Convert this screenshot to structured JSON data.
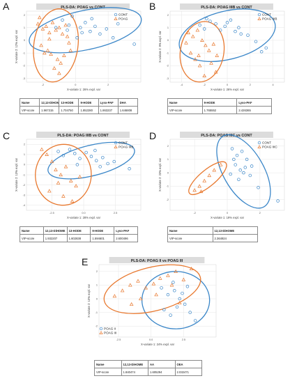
{
  "colors": {
    "cont": "#3a86c8",
    "poag": "#e8782e",
    "grid": "#e6e6e6",
    "title_bg": "#dcdcdc"
  },
  "panels": [
    {
      "letter": "A",
      "title": "PLS-DA: POAG vs CONT",
      "xlabel": "X-variate 1: 26% expl. var",
      "ylabel": "X-variate 2: 12% expl. var",
      "legend": [
        "CONT",
        "POAG"
      ],
      "xticks": [
        "-2",
        "0",
        "2"
      ],
      "yticks": [
        "2",
        "1",
        "0",
        "-1",
        "-2",
        "-3"
      ],
      "table": {
        "header": [
          "Name",
          "12,13-DiHOME",
          "13-HODE",
          "9-HODE",
          "Lyso-PAF",
          "DHA"
        ],
        "row": [
          "VIP-score",
          "1.967315",
          "1.704750",
          "1.852280",
          "1.863237",
          "1.646808"
        ]
      }
    },
    {
      "letter": "B",
      "title": "PLS-DA: POAG IIIB vs CONT",
      "xlabel": "X-variate 1: 26% expl. var",
      "ylabel": "X-variate 2: 9% expl. var",
      "legend": [
        "CONT",
        "POAG IIIB"
      ],
      "xticks": [
        "-4",
        "-2",
        "0",
        "2",
        "4"
      ],
      "yticks": [
        "2",
        "1",
        "0",
        "-1",
        "-2",
        "-3"
      ],
      "table": {
        "header": [
          "Name",
          "9-HODE",
          "Lyso-PAF"
        ],
        "row": [
          "VIP-score",
          "1.765552",
          "2.426365"
        ]
      }
    },
    {
      "letter": "C",
      "title": "PLS-DA: POAG IIIB vs CONT",
      "xlabel": "X-variate 1: 28% expl. var",
      "ylabel": "X-variate 2: 13% expl. var",
      "legend": [
        "CONT",
        "POAG IIIB"
      ],
      "xticks": [
        "-2.5",
        "0.0",
        "2.5"
      ],
      "yticks": [
        "2",
        "1",
        "0",
        "-1",
        "-2",
        "-3",
        "-4"
      ],
      "table": {
        "header": [
          "Name",
          "12,13-DiHOME",
          "13-HODE",
          "9-HODE",
          "Lyso-PAF"
        ],
        "row": [
          "VIP-score",
          "1.932207",
          "1.602838",
          "1.594601",
          "2.600496"
        ]
      }
    },
    {
      "letter": "D",
      "title": "PLS-DA: POAG IIIC vs CONT",
      "xlabel": "X-variate 1: 19% expl. var",
      "ylabel": "X-variate 2: 23% expl. var",
      "legend": [
        "CONT",
        "POAG IIIC"
      ],
      "xticks": [
        "-2",
        "0",
        "2"
      ],
      "yticks": [
        "2",
        "1",
        "0",
        "-1",
        "-2"
      ],
      "table": {
        "header": [
          "Name",
          "12,13-DiHOME"
        ],
        "row": [
          "VIP-score",
          "2.364924"
        ]
      }
    },
    {
      "letter": "E",
      "title": "PLS-DA: POAG II vs POAG III",
      "xlabel": "X-variate 1: 24% expl. var",
      "ylabel": "X-variate 2: 10% expl. var",
      "legend": [
        "POAG II",
        "POAG III"
      ],
      "xticks": [
        "-2.5",
        "0.0",
        "2.5"
      ],
      "yticks": [
        "2",
        "1",
        "0",
        "-1",
        "-2"
      ],
      "table": {
        "header": [
          "Name",
          "12,13-DiHOME",
          "AA",
          "OEA"
        ],
        "row": [
          "VIP-score",
          "1.840474",
          "1.605294",
          "2.032471"
        ]
      }
    }
  ],
  "chart_data": [
    {
      "type": "scatter",
      "title": "PLS-DA: POAG vs CONT",
      "xlabel": "X-variate 1: 26% expl. var",
      "ylabel": "X-variate 2: 12% expl. var",
      "xlim": [
        -3,
        4
      ],
      "ylim": [
        -3.3,
        2.3
      ],
      "grid": true,
      "legend_position": "top-right",
      "series": [
        {
          "name": "CONT",
          "marker": "circle",
          "color": "#3a86c8",
          "x": [
            -0.8,
            -0.4,
            -0.2,
            0.3,
            0.6,
            0.9,
            1.2,
            1.5,
            1.9,
            2.3,
            0.1,
            -0.5,
            1.0,
            2.6,
            0.4,
            -1.2,
            3.6
          ],
          "y": [
            1.6,
            1.2,
            1.9,
            1.0,
            1.4,
            0.7,
            1.1,
            0.5,
            0.9,
            0.2,
            0.2,
            0.8,
            1.7,
            1.3,
            0.6,
            1.0,
            -0.3
          ]
        },
        {
          "name": "POAG",
          "marker": "triangle",
          "color": "#e8782e",
          "x": [
            -2.3,
            -2.0,
            -1.8,
            -1.6,
            -1.4,
            -1.2,
            -1.0,
            -0.8,
            -0.6,
            -0.5,
            -0.4,
            -2.1,
            -1.7,
            -1.5,
            -1.1,
            -0.9,
            -0.7,
            -1.3,
            -1.9,
            -0.3,
            -1.6,
            -1.0,
            -2.2
          ],
          "y": [
            1.3,
            0.9,
            1.1,
            0.6,
            1.4,
            0.8,
            1.0,
            0.5,
            1.2,
            0.3,
            -0.2,
            -0.4,
            -0.8,
            -1.1,
            -1.5,
            -1.8,
            -1.2,
            -2.2,
            -1.0,
            -0.8,
            0.1,
            -2.6,
            1.8
          ]
        }
      ],
      "ellipses": [
        {
          "series": "CONT",
          "cx": 0.6,
          "cy": 0.8,
          "rx": 3.5,
          "ry": 1.55,
          "angle_deg": -12
        },
        {
          "series": "POAG",
          "cx": -1.2,
          "cy": -0.4,
          "rx": 1.35,
          "ry": 2.9,
          "angle_deg": 8
        }
      ]
    },
    {
      "type": "scatter",
      "title": "PLS-DA: POAG IIIB vs CONT",
      "xlabel": "X-variate 1: 26% expl. var",
      "ylabel": "X-variate 2: 9% expl. var",
      "xlim": [
        -5,
        5
      ],
      "ylim": [
        -3.3,
        2.3
      ],
      "grid": true,
      "legend_position": "top-right",
      "series": [
        {
          "name": "CONT",
          "marker": "circle",
          "color": "#3a86c8",
          "x": [
            -2.4,
            -2.0,
            -1.5,
            -1.0,
            -0.6,
            -0.2,
            0.3,
            0.7,
            1.2,
            1.8,
            2.5,
            3.0,
            3.4,
            -1.8,
            0.0,
            1.0
          ],
          "y": [
            1.2,
            0.9,
            1.5,
            1.3,
            0.8,
            1.1,
            1.6,
            0.7,
            0.5,
            0.4,
            -0.1,
            -0.9,
            -0.6,
            1.7,
            1.4,
            1.0
          ]
        },
        {
          "name": "POAG IIIB",
          "marker": "triangle",
          "color": "#e8782e",
          "x": [
            -3.4,
            -3.0,
            -2.6,
            -2.2,
            -1.9,
            -1.6,
            -1.2,
            -0.9,
            -3.2,
            -2.8,
            -2.4,
            -1.4,
            -1.0,
            -2.0,
            -2.5,
            -3.6
          ],
          "y": [
            0.6,
            0.3,
            0.8,
            0.0,
            -0.4,
            -0.8,
            -0.3,
            -1.2,
            -1.0,
            -1.5,
            -2.0,
            -1.8,
            -2.5,
            -2.8,
            -1.2,
            -0.2
          ]
        }
      ],
      "ellipses": [
        {
          "series": "CONT",
          "cx": 0.0,
          "cy": 0.4,
          "rx": 4.3,
          "ry": 1.9,
          "angle_deg": -14
        },
        {
          "series": "POAG IIIB",
          "cx": -2.2,
          "cy": -0.9,
          "rx": 1.9,
          "ry": 2.4,
          "angle_deg": 10
        }
      ]
    },
    {
      "type": "scatter",
      "title": "PLS-DA: POAG IIIB vs CONT",
      "xlabel": "X-variate 1: 28% expl. var",
      "ylabel": "X-variate 2: 13% expl. var",
      "xlim": [
        -4.5,
        4.5
      ],
      "ylim": [
        -4.5,
        2.5
      ],
      "grid": true,
      "legend_position": "top-right",
      "series": [
        {
          "name": "CONT",
          "marker": "circle",
          "color": "#3a86c8",
          "x": [
            -2.0,
            -1.6,
            -1.1,
            -0.7,
            -0.3,
            0.2,
            0.6,
            1.0,
            1.5,
            1.9,
            2.4,
            3.6,
            -0.5,
            0.9,
            1.3
          ],
          "y": [
            1.3,
            0.9,
            1.5,
            1.1,
            0.6,
            1.2,
            0.8,
            0.4,
            0.7,
            0.1,
            0.3,
            -0.4,
            0.0,
            1.4,
            -0.2
          ]
        },
        {
          "name": "POAG IIIB",
          "marker": "triangle",
          "color": "#e8782e",
          "x": [
            -3.3,
            -2.9,
            -2.5,
            -2.2,
            -1.8,
            -1.4,
            -1.0,
            -0.6,
            -0.3,
            -2.7,
            -1.6,
            -0.9,
            -2.0
          ],
          "y": [
            1.5,
            1.0,
            0.3,
            -0.5,
            -1.0,
            -0.2,
            -1.6,
            -2.1,
            -1.2,
            -2.6,
            -3.1,
            -3.6,
            -1.8
          ]
        }
      ],
      "ellipses": [
        {
          "series": "CONT",
          "cx": 0.6,
          "cy": 0.4,
          "rx": 3.5,
          "ry": 1.5,
          "angle_deg": -14
        },
        {
          "series": "POAG IIIB",
          "cx": -1.6,
          "cy": -1.0,
          "rx": 2.2,
          "ry": 3.0,
          "angle_deg": 5
        }
      ]
    },
    {
      "type": "scatter",
      "title": "PLS-DA: POAG IIIC vs CONT",
      "xlabel": "X-variate 1: 19% expl. var",
      "ylabel": "X-variate 2: 23% expl. var",
      "xlim": [
        -3.5,
        3.5
      ],
      "ylim": [
        -2.8,
        2.5
      ],
      "grid": true,
      "legend_position": "top-right",
      "series": [
        {
          "name": "CONT",
          "marker": "circle",
          "color": "#3a86c8",
          "x": [
            0.3,
            0.6,
            0.9,
            1.2,
            0.5,
            0.8,
            1.1,
            1.4,
            0.2,
            0.7,
            1.0,
            1.5,
            0.4,
            1.9,
            3.1
          ],
          "y": [
            1.8,
            1.3,
            1.6,
            1.0,
            0.6,
            0.2,
            0.4,
            -0.2,
            -0.1,
            -0.5,
            0.0,
            0.5,
            1.0,
            -1.1,
            -2.1
          ]
        },
        {
          "name": "POAG IIIC",
          "marker": "triangle",
          "color": "#e8782e",
          "x": [
            -2.0,
            -1.7,
            -1.4,
            -1.1,
            -0.8,
            -0.4,
            -1.6
          ],
          "y": [
            -1.3,
            -1.0,
            -0.6,
            -0.2,
            0.2,
            0.6,
            -1.4
          ]
        }
      ],
      "ellipses": [
        {
          "series": "CONT",
          "cx": 1.0,
          "cy": 0.1,
          "rx": 2.5,
          "ry": 1.5,
          "angle_deg": 60
        },
        {
          "series": "POAG IIIC",
          "cx": -1.2,
          "cy": -0.4,
          "rx": 1.45,
          "ry": 0.6,
          "angle_deg": -40
        }
      ]
    },
    {
      "type": "scatter",
      "title": "PLS-DA: POAG II vs POAG III",
      "xlabel": "X-variate 1: 24% expl. var",
      "ylabel": "X-variate 2: 10% expl. var",
      "xlim": [
        -4,
        5
      ],
      "ylim": [
        -2.8,
        2.5
      ],
      "grid": true,
      "legend_position": "bottom-left",
      "series": [
        {
          "name": "POAG II",
          "marker": "circle",
          "color": "#3a86c8",
          "x": [
            0.8,
            1.3,
            1.8,
            2.2,
            2.6,
            1.0,
            1.5,
            2.0,
            2.4,
            3.0,
            3.4,
            1.7,
            2.8
          ],
          "y": [
            0.8,
            0.3,
            0.6,
            0.0,
            -0.4,
            -0.8,
            -1.2,
            -0.6,
            0.4,
            -1.0,
            -1.6,
            1.2,
            0.9
          ]
        },
        {
          "name": "POAG III",
          "marker": "triangle",
          "color": "#e8782e",
          "x": [
            -2.8,
            -2.2,
            -1.6,
            -1.0,
            -0.4,
            0.2,
            0.7,
            1.3,
            1.9,
            2.5,
            3.1,
            -0.8,
            0.4,
            1.6,
            2.2,
            -1.5
          ],
          "y": [
            0.2,
            0.6,
            1.0,
            1.3,
            0.8,
            1.1,
            1.5,
            1.7,
            2.0,
            1.4,
            2.2,
            0.0,
            0.3,
            1.0,
            -0.3,
            -0.4
          ]
        }
      ],
      "ellipses": [
        {
          "series": "POAG II",
          "cx": 1.9,
          "cy": -0.1,
          "rx": 2.6,
          "ry": 2.1,
          "angle_deg": 0
        },
        {
          "series": "POAG III",
          "cx": 0.1,
          "cy": 0.7,
          "rx": 3.8,
          "ry": 1.6,
          "angle_deg": -14
        }
      ]
    }
  ]
}
